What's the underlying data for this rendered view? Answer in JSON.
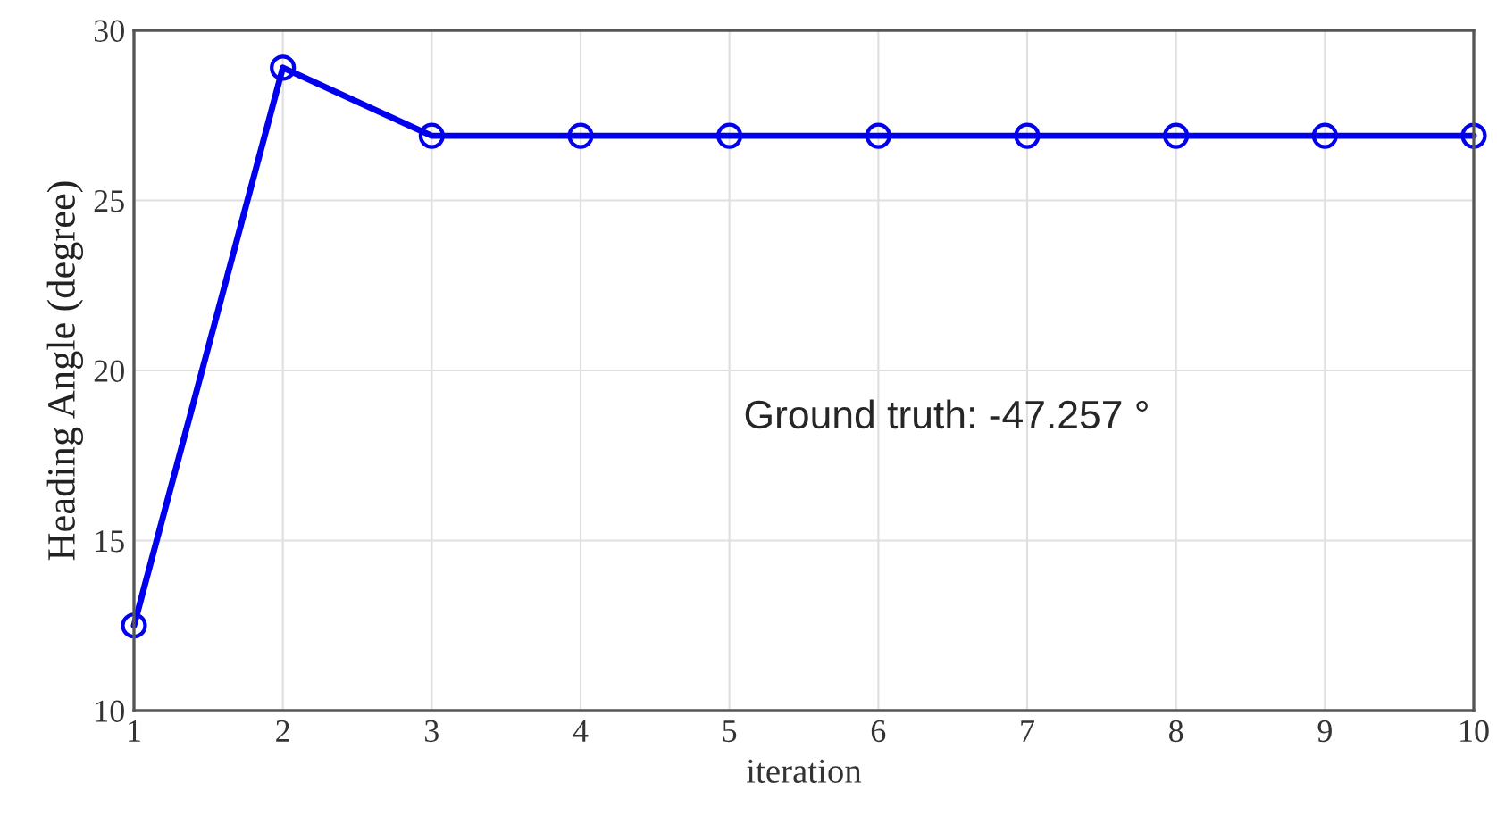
{
  "chart_data": {
    "type": "line",
    "xlabel": "iteration",
    "ylabel": "Heading Angle (degree)",
    "x": [
      1,
      2,
      3,
      4,
      5,
      6,
      7,
      8,
      9,
      10
    ],
    "series": [
      {
        "color": "#0000ee",
        "values": [
          12.5,
          28.9,
          26.9,
          26.9,
          26.9,
          26.9,
          26.9,
          26.9,
          26.9,
          26.9
        ]
      }
    ],
    "xlim": [
      1,
      10
    ],
    "xticks": [
      1,
      2,
      3,
      4,
      5,
      6,
      7,
      8,
      9,
      10
    ],
    "ylim": [
      10,
      30
    ],
    "yticks": [
      10,
      15,
      20,
      25,
      30
    ],
    "grid": true,
    "marker": "circle",
    "line_style": "solid",
    "annotations": [
      "Ground truth: -47.257 °"
    ]
  }
}
